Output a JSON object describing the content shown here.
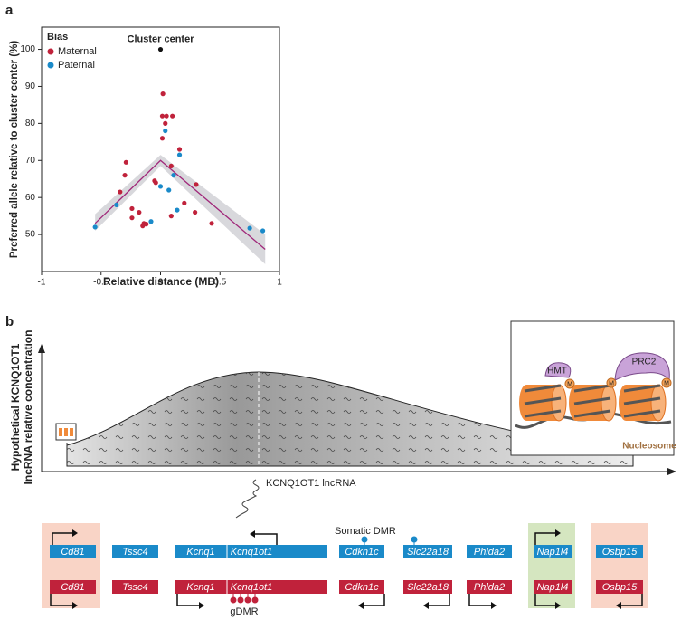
{
  "chart_data": {
    "type": "scatter",
    "panel_label": "a",
    "xlabel": "Relative distance (MB)",
    "ylabel": "Preferred allele relative to cluster center (%)",
    "xlim": [
      -1,
      1
    ],
    "xticks": [
      -1,
      -0.5,
      0,
      0.5,
      1
    ],
    "ylim": [
      40,
      106
    ],
    "yticks": [
      50,
      60,
      70,
      80,
      90,
      100
    ],
    "legend_title": "Bias",
    "legend": "upper left",
    "series": [
      {
        "name": "Maternal",
        "color": "#c0223b",
        "x": [
          0.02,
          0.015,
          0.05,
          0.1,
          0.04,
          0.015,
          -0.34,
          -0.29,
          -0.3,
          0.16,
          0.09,
          0.3,
          -0.05,
          -0.04,
          0.2,
          -0.24,
          -0.14,
          -0.15,
          -0.12,
          -0.18,
          -0.24,
          0.09,
          0.29,
          0.43
        ],
        "values": [
          88,
          82,
          82,
          82,
          80,
          76,
          61.5,
          69.5,
          66,
          73,
          68.5,
          63.5,
          64.5,
          64,
          58.5,
          57,
          53,
          52.3,
          52.8,
          56,
          54.5,
          55,
          56,
          53
        ]
      },
      {
        "name": "Paternal",
        "color": "#1a8ac9",
        "x": [
          0.04,
          0.16,
          0.11,
          0,
          0.07,
          -0.08,
          0.14,
          -0.37,
          -0.55,
          0.75,
          0.86
        ],
        "values": [
          78,
          71.5,
          66,
          63,
          62,
          53.5,
          56.6,
          58,
          52,
          51.7,
          51
        ]
      }
    ],
    "cluster_center": {
      "text": "Cluster center",
      "x": 0,
      "y": 100,
      "color": "#111111"
    },
    "trend": {
      "x": [
        -0.55,
        0,
        0.88
      ],
      "values": [
        53,
        70,
        46
      ],
      "lower": [
        51,
        68.5,
        42
      ],
      "upper": [
        55.5,
        71.5,
        50
      ],
      "color": "#a0287a"
    }
  },
  "panel_b": {
    "label": "b",
    "ylabel": [
      "Hypothetical KCNQ1OT1",
      "lncRNA relative concentration"
    ],
    "lncrna_label": "KCNQ1OT1 lncRNA",
    "somatic_dmr": "Somatic DMR",
    "gdmr": "gDMR",
    "inset": {
      "hmt": "HMT",
      "prc2": "PRC2",
      "mark": "M",
      "nucleosome": "Nucleosome"
    },
    "paternal_genes": [
      "Cd81",
      "Tssc4",
      "Kcnq1",
      "Kcnq1ot1",
      "Cdkn1c",
      "Slc22a18",
      "Phlda2",
      "Nap1l4",
      "Osbp15"
    ],
    "maternal_genes": [
      "Cd81",
      "Tssc4",
      "Kcnq1",
      "Kcnq1ot1",
      "Cdkn1c",
      "Slc22a18",
      "Phlda2",
      "Nap1l4",
      "Osbp15"
    ],
    "paternal_color": "#1a8ac9",
    "maternal_color": "#c0223b"
  }
}
